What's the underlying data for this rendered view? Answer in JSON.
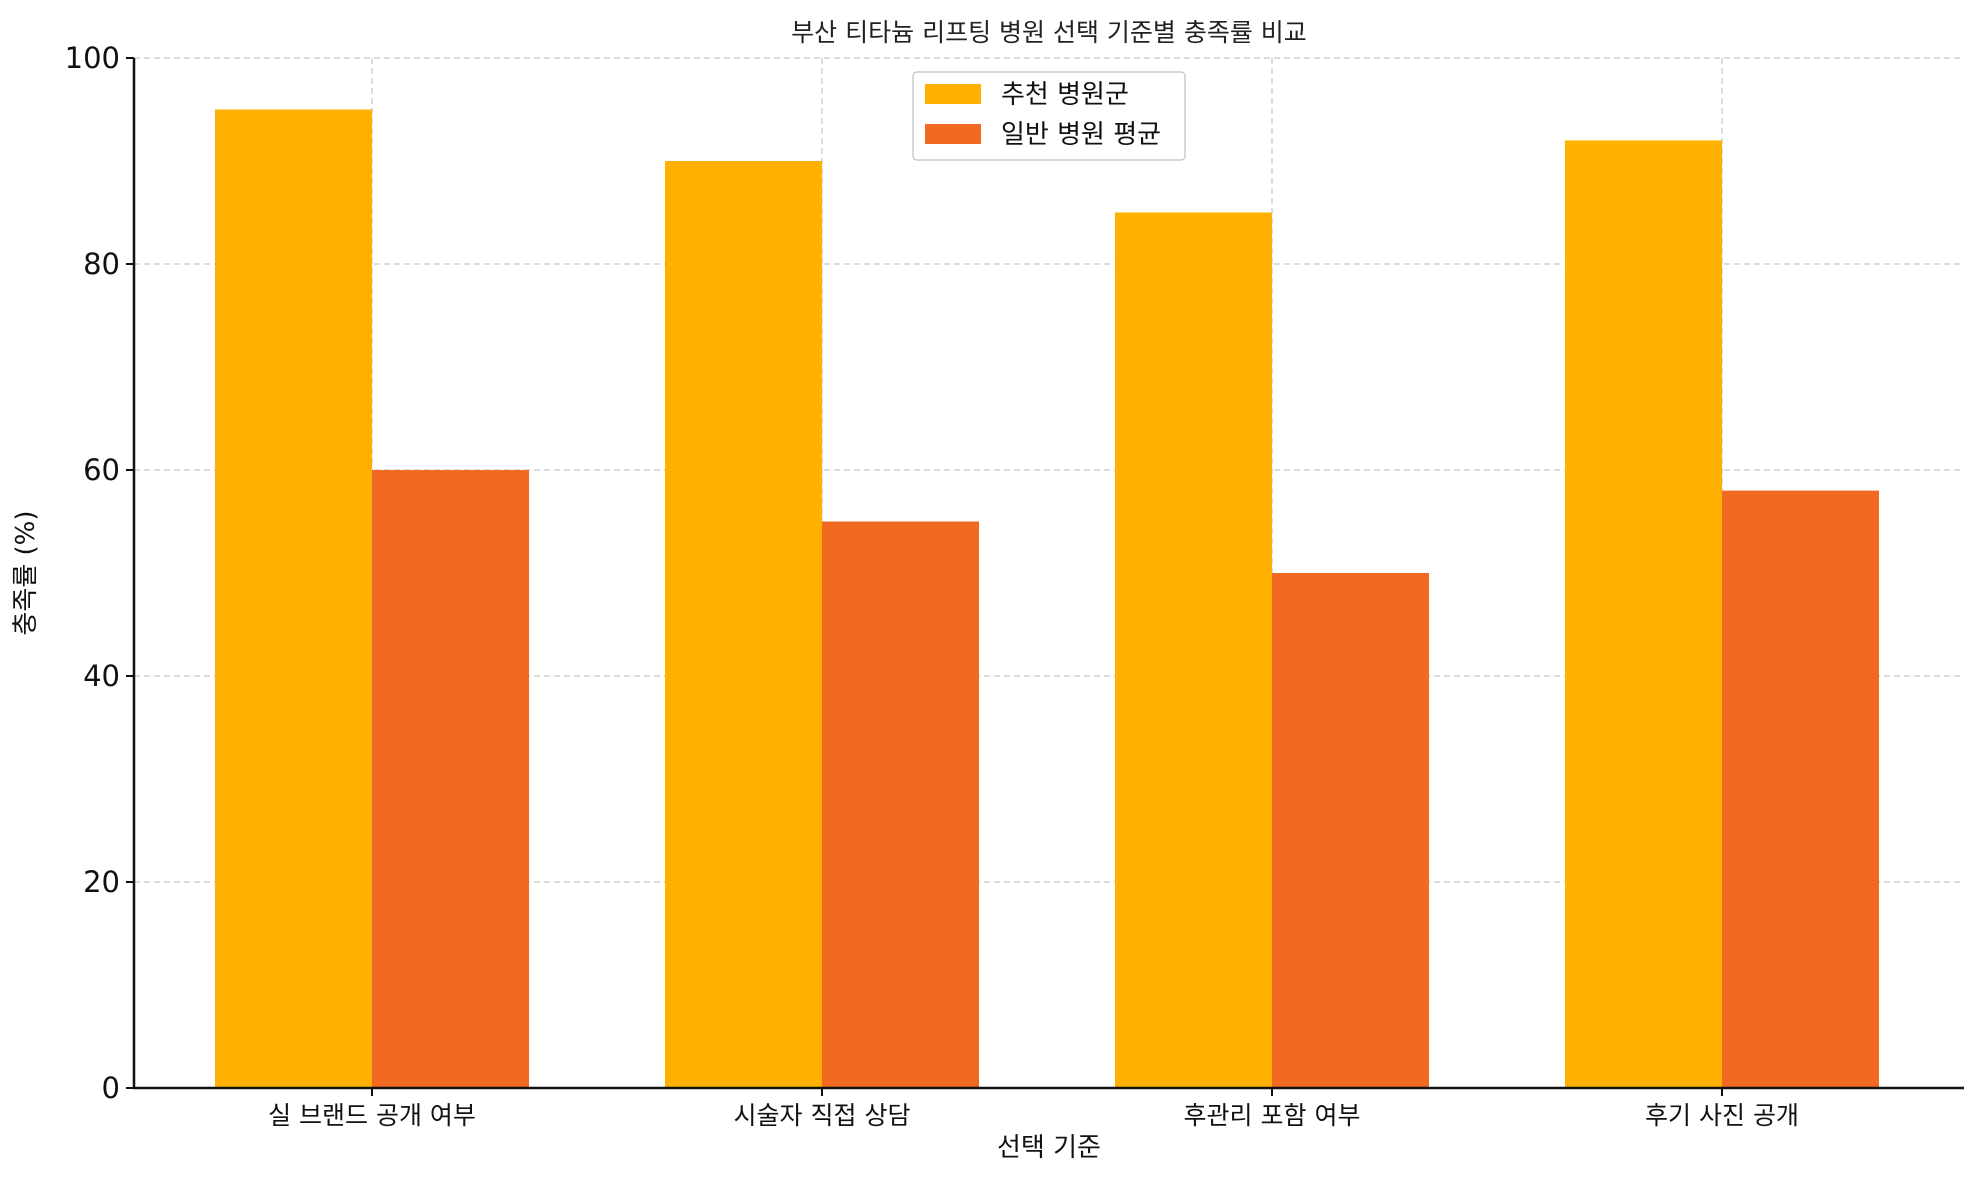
{
  "chart_data": {
    "type": "bar",
    "title": "부산 티타늄 리프팅 병원 선택 기준별 충족률 비교",
    "xlabel": "선택 기준",
    "ylabel": "충족률 (%)",
    "categories": [
      "실 브랜드 공개 여부",
      "시술자 직접 상담",
      "후관리 포함 여부",
      "후기 사진 공개"
    ],
    "series": [
      {
        "name": "추천 병원군",
        "values": [
          95,
          90,
          85,
          92
        ],
        "color": "#FFB000"
      },
      {
        "name": "일반 병원 평균",
        "values": [
          60,
          55,
          50,
          58
        ],
        "color": "#F26A22"
      }
    ],
    "ylim": [
      0,
      100
    ],
    "yticks": [
      0,
      20,
      40,
      60,
      80,
      100
    ],
    "grid": true,
    "legend_position": "top-center"
  }
}
